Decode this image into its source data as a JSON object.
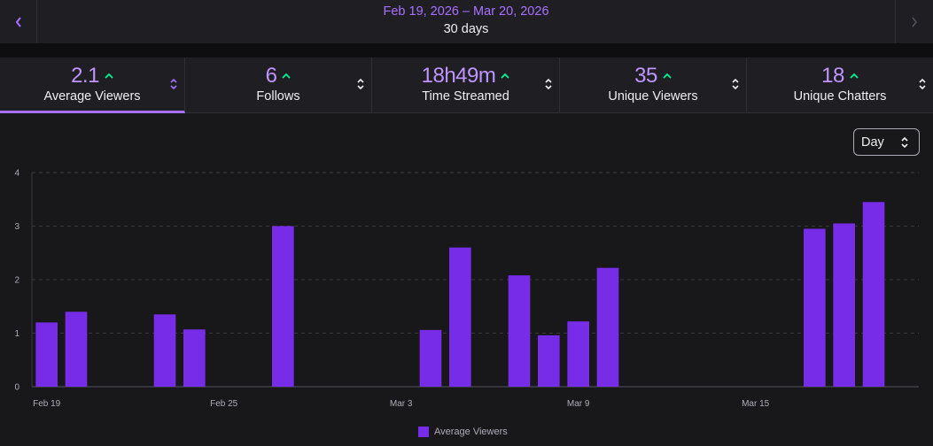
{
  "header": {
    "date_range": "Feb 19, 2026 – Mar 20, 2026",
    "period": "30 days"
  },
  "stats": [
    {
      "value": "2.1",
      "label": "Average Viewers",
      "active": true
    },
    {
      "value": "6",
      "label": "Follows",
      "active": false
    },
    {
      "value": "18h49m",
      "label": "Time Streamed",
      "active": false
    },
    {
      "value": "35",
      "label": "Unique Viewers",
      "active": false
    },
    {
      "value": "18",
      "label": "Unique Chatters",
      "active": false
    }
  ],
  "granularity": {
    "selected": "Day"
  },
  "colors": {
    "accent": "#a970ff",
    "value": "#bf94ff",
    "trend_up": "#00f593",
    "bar": "#772ce8"
  },
  "chart_data": {
    "type": "bar",
    "title": "",
    "xlabel": "",
    "ylabel": "",
    "ylim": [
      0,
      4
    ],
    "y_ticks": [
      0,
      1,
      2,
      3,
      4
    ],
    "x_tick_labels": [
      "Feb 19",
      "Feb 25",
      "Mar 3",
      "Mar 9",
      "Mar 15"
    ],
    "categories": [
      "Feb 19",
      "Feb 20",
      "Feb 21",
      "Feb 22",
      "Feb 23",
      "Feb 24",
      "Feb 25",
      "Feb 26",
      "Feb 27",
      "Feb 28",
      "Mar 1",
      "Mar 2",
      "Mar 3",
      "Mar 4",
      "Mar 5",
      "Mar 6",
      "Mar 7",
      "Mar 8",
      "Mar 9",
      "Mar 10",
      "Mar 11",
      "Mar 12",
      "Mar 13",
      "Mar 14",
      "Mar 15",
      "Mar 16",
      "Mar 17",
      "Mar 18",
      "Mar 19",
      "Mar 20"
    ],
    "series": [
      {
        "name": "Average Viewers",
        "values": [
          1.2,
          1.4,
          null,
          null,
          1.35,
          1.07,
          null,
          null,
          3.0,
          null,
          null,
          null,
          null,
          1.06,
          2.6,
          null,
          2.08,
          0.96,
          1.22,
          2.22,
          null,
          null,
          null,
          null,
          null,
          null,
          2.95,
          3.05,
          3.45,
          null
        ]
      }
    ],
    "legend": [
      "Average Viewers"
    ],
    "legend_position": "bottom-center",
    "grid": true
  }
}
